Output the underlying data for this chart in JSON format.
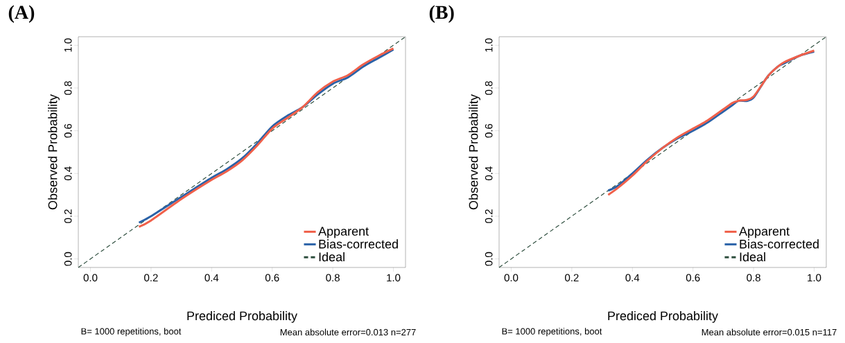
{
  "chart_data": [
    {
      "type": "line",
      "title": "(A)",
      "xlabel": "Prediced Probability",
      "ylabel": "Observed Probability",
      "annotations": [
        "B= 1000 repetitions, boot",
        "Mean absolute error=0.013 n=277"
      ],
      "xlim": [
        -0.04,
        1.04
      ],
      "ylim": [
        -0.04,
        1.04
      ],
      "xticks": [
        {
          "value": 0,
          "label": "0.0"
        },
        {
          "value": 0.2,
          "label": "0.2"
        },
        {
          "value": 0.4,
          "label": "0.4"
        },
        {
          "value": 0.6,
          "label": "0.6"
        },
        {
          "value": 0.8,
          "label": "0.8"
        },
        {
          "value": 1,
          "label": "1.0"
        }
      ],
      "yticks": [
        {
          "value": 0,
          "label": "0.0"
        },
        {
          "value": 0.2,
          "label": "0.2"
        },
        {
          "value": 0.4,
          "label": "0.4"
        },
        {
          "value": 0.6,
          "label": "0.6"
        },
        {
          "value": 0.8,
          "label": "0.8"
        },
        {
          "value": 1,
          "label": "1.0"
        }
      ],
      "legend": "bottom right",
      "grid": false,
      "series": [
        {
          "name": "Apparent",
          "color": "#f0604a",
          "line_style": "solid",
          "x": [
            0.16,
            0.2,
            0.3,
            0.4,
            0.45,
            0.5,
            0.55,
            0.6,
            0.65,
            0.7,
            0.75,
            0.8,
            0.85,
            0.9,
            0.95,
            1.0
          ],
          "values": [
            0.15,
            0.18,
            0.28,
            0.37,
            0.41,
            0.46,
            0.53,
            0.61,
            0.66,
            0.71,
            0.78,
            0.83,
            0.86,
            0.91,
            0.95,
            0.985
          ]
        },
        {
          "name": "Bias-corrected",
          "color": "#2a62a8",
          "line_style": "solid",
          "x": [
            0.16,
            0.2,
            0.3,
            0.4,
            0.45,
            0.5,
            0.55,
            0.6,
            0.65,
            0.7,
            0.75,
            0.8,
            0.85,
            0.9,
            0.95,
            1.0
          ],
          "values": [
            0.17,
            0.2,
            0.29,
            0.38,
            0.42,
            0.47,
            0.54,
            0.62,
            0.67,
            0.71,
            0.77,
            0.82,
            0.85,
            0.9,
            0.94,
            0.98
          ]
        },
        {
          "name": "Ideal",
          "color": "#2f4f3f",
          "line_style": "dashed",
          "x": [
            -0.04,
            1.04
          ],
          "values": [
            -0.04,
            1.04
          ]
        }
      ]
    },
    {
      "type": "line",
      "title": "(B)",
      "xlabel": "Prediced Probability",
      "ylabel": "Observed Probability",
      "annotations": [
        "B= 1000 repetitions, boot",
        "Mean absolute error=0.015 n=117"
      ],
      "xlim": [
        -0.04,
        1.04
      ],
      "ylim": [
        -0.04,
        1.04
      ],
      "xticks": [
        {
          "value": 0,
          "label": "0.0"
        },
        {
          "value": 0.2,
          "label": "0.2"
        },
        {
          "value": 0.4,
          "label": "0.4"
        },
        {
          "value": 0.6,
          "label": "0.6"
        },
        {
          "value": 0.8,
          "label": "0.8"
        },
        {
          "value": 1,
          "label": "1.0"
        }
      ],
      "yticks": [
        {
          "value": 0,
          "label": "0.0"
        },
        {
          "value": 0.2,
          "label": "0.2"
        },
        {
          "value": 0.4,
          "label": "0.4"
        },
        {
          "value": 0.6,
          "label": "0.6"
        },
        {
          "value": 0.8,
          "label": "0.8"
        },
        {
          "value": 1,
          "label": "1.0"
        }
      ],
      "legend": "bottom right",
      "grid": false,
      "series": [
        {
          "name": "Apparent",
          "color": "#f0604a",
          "line_style": "solid",
          "x": [
            0.32,
            0.35,
            0.4,
            0.45,
            0.5,
            0.55,
            0.6,
            0.65,
            0.7,
            0.73,
            0.75,
            0.78,
            0.8,
            0.83,
            0.85,
            0.88,
            0.9,
            0.95,
            1.0
          ],
          "values": [
            0.3,
            0.33,
            0.39,
            0.46,
            0.52,
            0.57,
            0.61,
            0.65,
            0.7,
            0.73,
            0.74,
            0.745,
            0.76,
            0.82,
            0.86,
            0.9,
            0.92,
            0.95,
            0.975
          ]
        },
        {
          "name": "Bias-corrected",
          "color": "#2a62a8",
          "line_style": "solid",
          "x": [
            0.32,
            0.35,
            0.4,
            0.45,
            0.5,
            0.55,
            0.6,
            0.65,
            0.7,
            0.73,
            0.75,
            0.78,
            0.8,
            0.83,
            0.85,
            0.88,
            0.9,
            0.95,
            1.0
          ],
          "values": [
            0.32,
            0.34,
            0.4,
            0.465,
            0.52,
            0.565,
            0.6,
            0.64,
            0.69,
            0.72,
            0.74,
            0.74,
            0.755,
            0.82,
            0.86,
            0.9,
            0.915,
            0.95,
            0.97
          ]
        },
        {
          "name": "Ideal",
          "color": "#2f4f3f",
          "line_style": "dashed",
          "x": [
            -0.04,
            1.04
          ],
          "values": [
            -0.04,
            1.04
          ]
        }
      ]
    }
  ]
}
